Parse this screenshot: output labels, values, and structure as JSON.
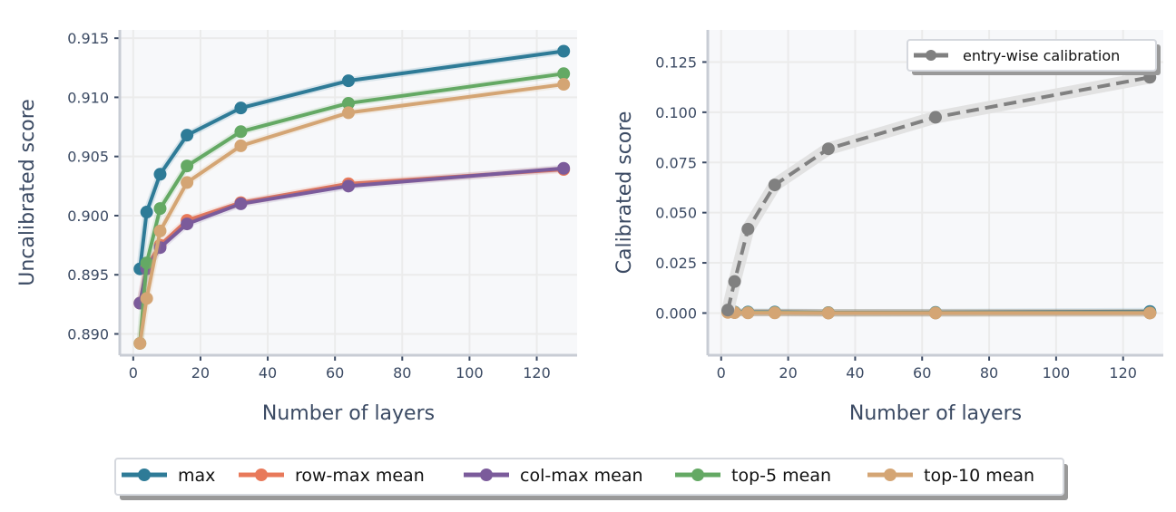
{
  "chart_data": [
    {
      "type": "line",
      "xlabel": "Number of layers",
      "ylabel": "Uncalibrated score",
      "xlim": [
        -4,
        132
      ],
      "ylim": [
        0.8882,
        0.9157
      ],
      "xticks": [
        0,
        20,
        40,
        60,
        80,
        100,
        120
      ],
      "yticks": [
        0.89,
        0.895,
        0.9,
        0.905,
        0.91,
        0.915
      ],
      "ytick_labels": [
        "0.890",
        "0.895",
        "0.900",
        "0.905",
        "0.910",
        "0.915"
      ],
      "grid": true,
      "x": [
        2,
        4,
        8,
        16,
        32,
        64,
        128
      ],
      "series": [
        {
          "name": "max",
          "color": "#2e7b97",
          "values": [
            0.8955,
            0.9003,
            0.9035,
            0.9068,
            0.9091,
            0.9114,
            0.9139
          ]
        },
        {
          "name": "row-max mean",
          "color": "#e8795a",
          "values": [
            0.8926,
            0.8957,
            0.8975,
            0.8996,
            0.9011,
            0.9027,
            0.9039
          ]
        },
        {
          "name": "col-max mean",
          "color": "#7b5b9b",
          "values": [
            0.8926,
            0.8955,
            0.8973,
            0.8993,
            0.901,
            0.9025,
            0.904
          ]
        },
        {
          "name": "top-5 mean",
          "color": "#64a964",
          "values": [
            0.8892,
            0.896,
            0.9006,
            0.9042,
            0.9071,
            0.9095,
            0.912
          ]
        },
        {
          "name": "top-10 mean",
          "color": "#d4a574",
          "values": [
            0.8892,
            0.893,
            0.8987,
            0.9028,
            0.9059,
            0.9087,
            0.9111
          ]
        }
      ]
    },
    {
      "type": "line",
      "xlabel": "Number of layers",
      "ylabel": "Calibrated score",
      "xlim": [
        -4,
        132
      ],
      "ylim": [
        -0.021,
        0.141
      ],
      "xticks": [
        0,
        20,
        40,
        60,
        80,
        100,
        120
      ],
      "yticks": [
        0,
        0.025,
        0.05,
        0.075,
        0.1,
        0.125
      ],
      "ytick_labels": [
        "0.000",
        "0.025",
        "0.050",
        "0.075",
        "0.100",
        "0.125"
      ],
      "grid": true,
      "legend_placement": "top-right",
      "x": [
        2,
        4,
        8,
        16,
        32,
        64,
        128
      ],
      "series": [
        {
          "name": "entry-wise calibration",
          "color": "#808080",
          "dashed": true,
          "values": [
            0.0015,
            0.0157,
            0.0418,
            0.0638,
            0.0818,
            0.0975,
            0.1174
          ]
        },
        {
          "name": "max",
          "color": "#2e7b97",
          "values": [
            0.001,
            0.0005,
            0.0005,
            0.0005,
            0.0002,
            0.0003,
            0.0008
          ]
        },
        {
          "name": "row-max mean",
          "color": "#e8795a",
          "values": [
            0.0005,
            0.0003,
            0.0002,
            0.0002,
            0.0001,
            0.0001,
            0.0001
          ]
        },
        {
          "name": "col-max mean",
          "color": "#7b5b9b",
          "values": [
            0.0005,
            0.0003,
            0.0002,
            0.0002,
            0.0001,
            0.0001,
            0.0001
          ]
        },
        {
          "name": "top-5 mean",
          "color": "#64a964",
          "values": [
            0.0005,
            0.0003,
            0.0002,
            0.0002,
            0.0001,
            0.0001,
            0.0001
          ]
        },
        {
          "name": "top-10 mean",
          "color": "#d4a574",
          "values": [
            0.0003,
            0.0002,
            0.0001,
            0.0001,
            0.0,
            0.0,
            0.0
          ]
        }
      ]
    }
  ],
  "legend": [
    "max",
    "row-max mean",
    "col-max mean",
    "top-5 mean",
    "top-10 mean"
  ]
}
